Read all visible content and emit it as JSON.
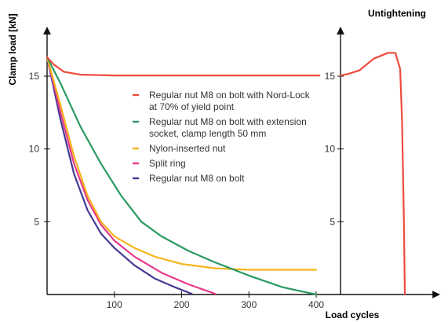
{
  "chart_data": {
    "type": "line",
    "ylabel": "Clamp load [kN]",
    "xlabel": "Load cycles",
    "right_panel_title": "Untightening",
    "xlim": [
      0,
      420
    ],
    "ylim": [
      0,
      17.5
    ],
    "x_ticks": [
      100,
      200,
      300,
      400
    ],
    "y_ticks": [
      5,
      10,
      15
    ],
    "right_y_ticks": [
      5,
      10,
      15
    ],
    "grid": false,
    "legend_position": "center",
    "series": [
      {
        "name": "Regular nut M8 on bolt with Nord-Lock at 70% of yield point",
        "color": "#ef4a3c",
        "points": [
          [
            0,
            16.3
          ],
          [
            10,
            15.8
          ],
          [
            25,
            15.3
          ],
          [
            50,
            15.1
          ],
          [
            100,
            15.05
          ],
          [
            200,
            15.05
          ],
          [
            300,
            15.05
          ],
          [
            405,
            15.05
          ]
        ]
      },
      {
        "name": "Regular nut M8 on bolt with extension socket, clamp length 50 mm",
        "color": "#2a9a62",
        "points": [
          [
            0,
            16.3
          ],
          [
            20,
            14.5
          ],
          [
            50,
            11.5
          ],
          [
            80,
            9.0
          ],
          [
            110,
            6.8
          ],
          [
            140,
            5.0
          ],
          [
            170,
            4.0
          ],
          [
            210,
            3.0
          ],
          [
            250,
            2.2
          ],
          [
            300,
            1.3
          ],
          [
            350,
            0.5
          ],
          [
            400,
            0.0
          ]
        ]
      },
      {
        "name": "Nylon-inserted nut",
        "color": "#f5b51d",
        "points": [
          [
            0,
            16.3
          ],
          [
            20,
            13.0
          ],
          [
            40,
            9.5
          ],
          [
            60,
            6.8
          ],
          [
            80,
            5.0
          ],
          [
            100,
            4.0
          ],
          [
            130,
            3.2
          ],
          [
            160,
            2.6
          ],
          [
            200,
            2.1
          ],
          [
            250,
            1.8
          ],
          [
            300,
            1.7
          ],
          [
            400,
            1.7
          ]
        ]
      },
      {
        "name": "Split ring",
        "color": "#e8388c",
        "points": [
          [
            0,
            16.3
          ],
          [
            20,
            12.5
          ],
          [
            40,
            9.0
          ],
          [
            60,
            6.5
          ],
          [
            80,
            4.8
          ],
          [
            100,
            3.7
          ],
          [
            130,
            2.6
          ],
          [
            170,
            1.5
          ],
          [
            210,
            0.7
          ],
          [
            250,
            0.05
          ]
        ]
      },
      {
        "name": "Regular nut M8 on bolt",
        "color": "#423b93",
        "points": [
          [
            0,
            16.3
          ],
          [
            20,
            12.0
          ],
          [
            40,
            8.3
          ],
          [
            60,
            5.8
          ],
          [
            80,
            4.2
          ],
          [
            100,
            3.2
          ],
          [
            130,
            2.0
          ],
          [
            160,
            1.1
          ],
          [
            190,
            0.5
          ],
          [
            215,
            0.05
          ]
        ]
      }
    ],
    "untightening_series": {
      "color": "#ef4a3c",
      "points": [
        [
          0,
          15.05
        ],
        [
          0.08,
          15.15
        ],
        [
          0.2,
          15.4
        ],
        [
          0.35,
          16.2
        ],
        [
          0.5,
          16.6
        ],
        [
          0.58,
          16.6
        ],
        [
          0.63,
          15.5
        ],
        [
          0.65,
          12.0
        ],
        [
          0.67,
          5.0
        ],
        [
          0.68,
          0.0
        ]
      ]
    }
  }
}
